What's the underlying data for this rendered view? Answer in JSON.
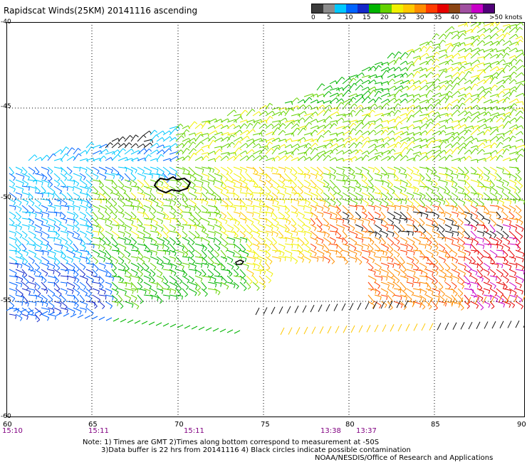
{
  "title": "Rapidscat Winds(25KM) 20141116 ascending",
  "colorbar": {
    "colors": [
      "#3c3c3c",
      "#8c8c8c",
      "#00c8ff",
      "#0064ff",
      "#1428c8",
      "#00b400",
      "#64d200",
      "#f0f000",
      "#ffc800",
      "#ff8c00",
      "#ff3c00",
      "#e60000",
      "#8b4513",
      "#a050a0",
      "#c800c8",
      "#500078"
    ],
    "labels": [
      "0",
      "5",
      "10",
      "15",
      "20",
      "25",
      "30",
      "35",
      "40",
      "45",
      ">50 knots"
    ]
  },
  "y_labels": [
    "-40",
    "-45",
    "-50",
    "-55",
    "-60"
  ],
  "x_labels": [
    "60",
    "65",
    "70",
    "75",
    "80",
    "85",
    "90"
  ],
  "time_labels": [
    "15:10",
    "15:11",
    "15:11",
    "13:38",
    "13:37"
  ],
  "notes": {
    "line1": "Note: 1) Times are GMT 2)Times along bottom correspond to measurement at -50S",
    "line2": "3)Data buffer is 22 hrs from 20141116 4) Black circles indicate possible contamination"
  },
  "credit": "NOAA/NESDIS/Office of Research and Applications"
}
